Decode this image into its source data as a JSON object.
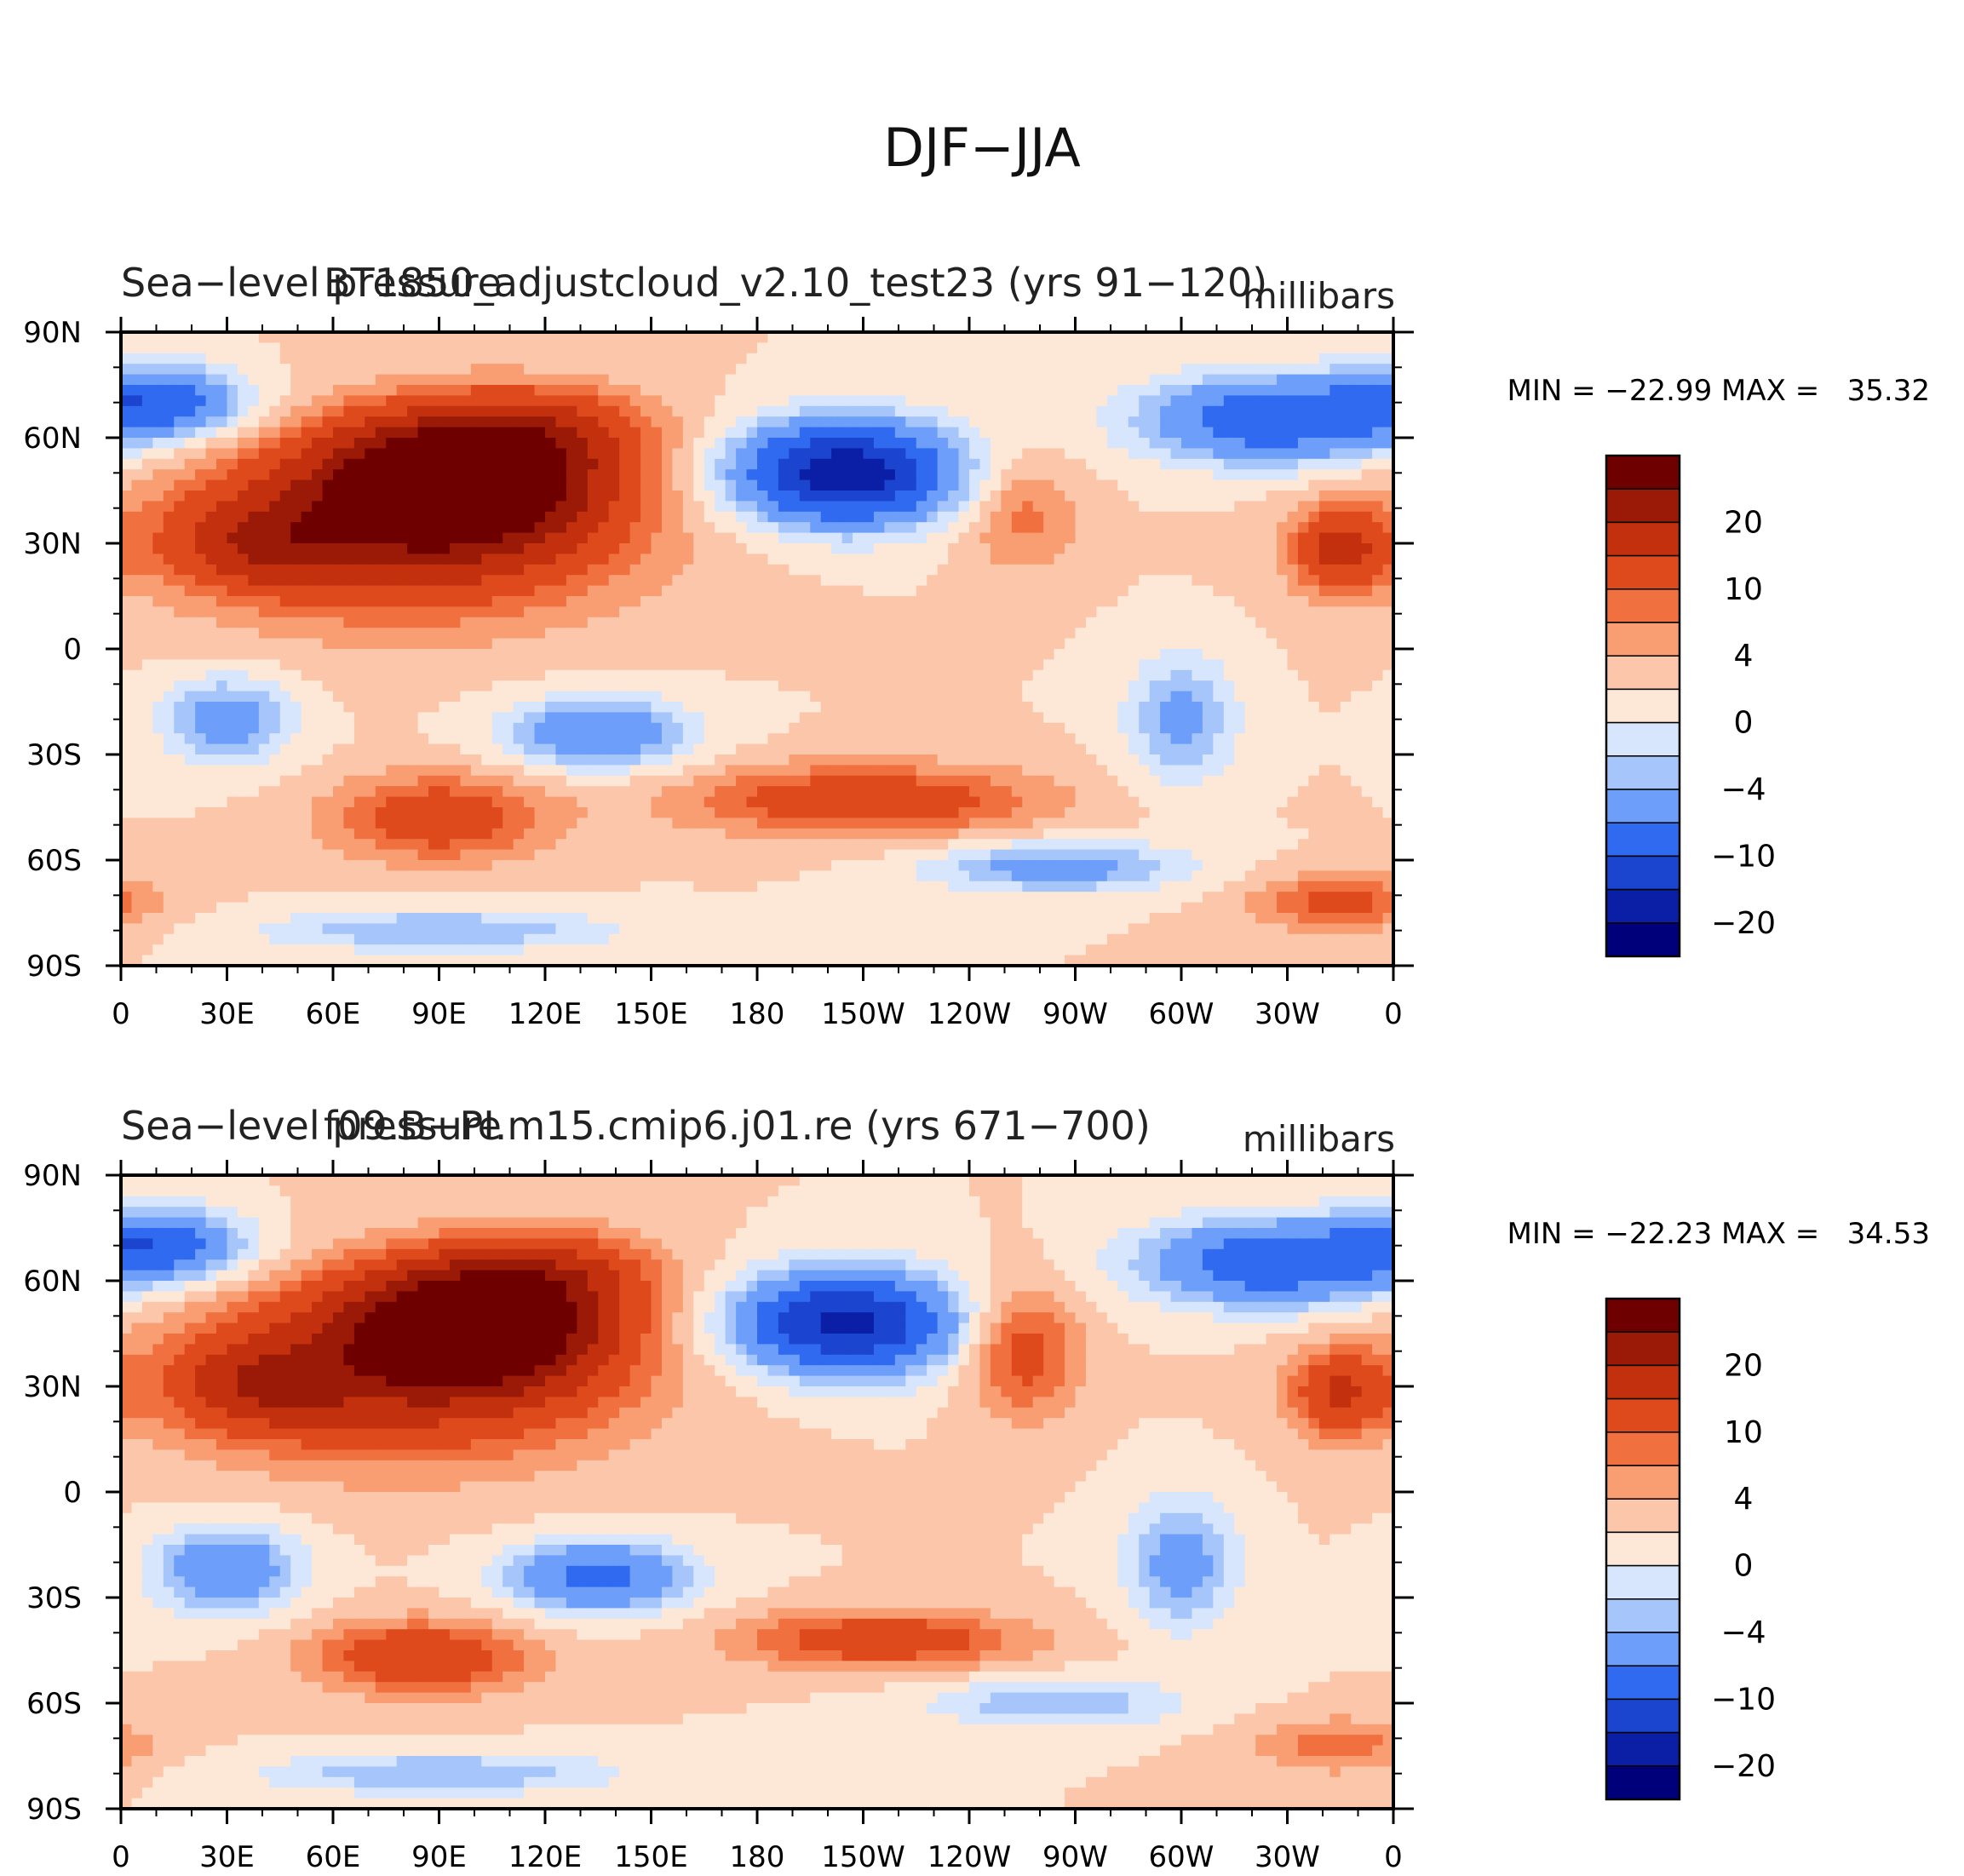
{
  "figure": {
    "title": "DJF−JJA"
  },
  "chart_data": [
    {
      "type": "heatmap",
      "left_title": "Sea−level pressure",
      "center_title": "BT1850_adjustcloud_v2.10_test23 (yrs 91−120)",
      "units": "millibars",
      "stats": {
        "label": "MIN = −22.99 MAX =   35.32",
        "min": -22.99,
        "max": 35.32
      },
      "x_ticks": [
        "0",
        "30E",
        "60E",
        "90E",
        "120E",
        "150E",
        "180",
        "150W",
        "120W",
        "90W",
        "60W",
        "30W",
        "0"
      ],
      "y_ticks": [
        "90N",
        "60N",
        "30N",
        "0",
        "30S",
        "60S",
        "90S"
      ],
      "xlim": [
        0,
        360
      ],
      "ylim": [
        -90,
        90
      ],
      "colorbar_labels": [
        "20",
        "10",
        "4",
        "0",
        "−4",
        "−10",
        "−20"
      ],
      "levels": [
        -25,
        -20,
        -15,
        -10,
        -6,
        -4,
        -2,
        0,
        2,
        4,
        6,
        10,
        15,
        20,
        25
      ],
      "colors": [
        "#00007a",
        "#0a1fa6",
        "#1b44cf",
        "#2f6af0",
        "#6d9ef9",
        "#a6c6fb",
        "#d7e6fd",
        "#fde8d8",
        "#fcc6aa",
        "#f99e72",
        "#f0703f",
        "#df4a1c",
        "#c2300d",
        "#9a1a07",
        "#6e0000"
      ],
      "anomaly_centers": [
        {
          "lon": 95,
          "lat": 48,
          "value": 28,
          "rlon": 35,
          "rlat": 17
        },
        {
          "lon": 80,
          "lat": 35,
          "value": 14,
          "rlon": 60,
          "rlat": 25
        },
        {
          "lon": 40,
          "lat": 30,
          "value": 9,
          "rlon": 25,
          "rlat": 12
        },
        {
          "lon": 120,
          "lat": 62,
          "value": 8,
          "rlon": 30,
          "rlat": 12
        },
        {
          "lon": 345,
          "lat": 28,
          "value": 11,
          "rlon": 14,
          "rlat": 12
        },
        {
          "lon": 255,
          "lat": 38,
          "value": 5,
          "rlon": 16,
          "rlat": 16
        },
        {
          "lon": 205,
          "lat": 50,
          "value": -24,
          "rlon": 30,
          "rlat": 14
        },
        {
          "lon": 325,
          "lat": 65,
          "value": -14,
          "rlon": 35,
          "rlat": 12
        },
        {
          "lon": 10,
          "lat": 70,
          "value": -13,
          "rlon": 25,
          "rlat": 10
        },
        {
          "lon": 30,
          "lat": -20,
          "value": -8,
          "rlon": 18,
          "rlat": 12
        },
        {
          "lon": 135,
          "lat": -24,
          "value": -10,
          "rlon": 25,
          "rlat": 10
        },
        {
          "lon": 300,
          "lat": -20,
          "value": -7,
          "rlon": 15,
          "rlat": 18
        },
        {
          "lon": 90,
          "lat": -48,
          "value": 9,
          "rlon": 30,
          "rlat": 12
        },
        {
          "lon": 210,
          "lat": -43,
          "value": 9,
          "rlon": 50,
          "rlat": 10
        },
        {
          "lon": 265,
          "lat": -62,
          "value": -8,
          "rlon": 35,
          "rlat": 7
        },
        {
          "lon": 345,
          "lat": -72,
          "value": 7,
          "rlon": 25,
          "rlat": 8
        },
        {
          "lon": 90,
          "lat": -80,
          "value": -6,
          "rlon": 50,
          "rlat": 6
        }
      ]
    },
    {
      "type": "heatmap",
      "left_title": "Sea−level pressure",
      "center_title": "f09.B−PI.m15.cmip6.j01.re (yrs 671−700)",
      "units": "millibars",
      "stats": {
        "label": "MIN = −22.23 MAX =   34.53",
        "min": -22.23,
        "max": 34.53
      },
      "x_ticks": [
        "0",
        "30E",
        "60E",
        "90E",
        "120E",
        "150E",
        "180",
        "150W",
        "120W",
        "90W",
        "60W",
        "30W",
        "0"
      ],
      "y_ticks": [
        "90N",
        "60N",
        "30N",
        "0",
        "30S",
        "60S",
        "90S"
      ],
      "xlim": [
        0,
        360
      ],
      "ylim": [
        -90,
        90
      ],
      "colorbar_labels": [
        "20",
        "10",
        "4",
        "0",
        "−4",
        "−10",
        "−20"
      ],
      "levels": [
        -25,
        -20,
        -15,
        -10,
        -6,
        -4,
        -2,
        0,
        2,
        4,
        6,
        10,
        15,
        20,
        25
      ],
      "colors": [
        "#00007a",
        "#0a1fa6",
        "#1b44cf",
        "#2f6af0",
        "#6d9ef9",
        "#a6c6fb",
        "#d7e6fd",
        "#fde8d8",
        "#fcc6aa",
        "#f99e72",
        "#f0703f",
        "#df4a1c",
        "#c2300d",
        "#9a1a07",
        "#6e0000"
      ],
      "anomaly_centers": [
        {
          "lon": 100,
          "lat": 47,
          "value": 27,
          "rlon": 33,
          "rlat": 16
        },
        {
          "lon": 80,
          "lat": 35,
          "value": 13,
          "rlon": 60,
          "rlat": 25
        },
        {
          "lon": 40,
          "lat": 30,
          "value": 9,
          "rlon": 25,
          "rlat": 12
        },
        {
          "lon": 120,
          "lat": 62,
          "value": 9,
          "rlon": 30,
          "rlat": 12
        },
        {
          "lon": 345,
          "lat": 28,
          "value": 10,
          "rlon": 14,
          "rlat": 12
        },
        {
          "lon": 255,
          "lat": 40,
          "value": 8,
          "rlon": 16,
          "rlat": 18
        },
        {
          "lon": 205,
          "lat": 48,
          "value": -22,
          "rlon": 30,
          "rlat": 14
        },
        {
          "lon": 325,
          "lat": 65,
          "value": -14,
          "rlon": 35,
          "rlat": 12
        },
        {
          "lon": 10,
          "lat": 70,
          "value": -13,
          "rlon": 25,
          "rlat": 10
        },
        {
          "lon": 30,
          "lat": -22,
          "value": -10,
          "rlon": 20,
          "rlat": 12
        },
        {
          "lon": 135,
          "lat": -24,
          "value": -12,
          "rlon": 25,
          "rlat": 10
        },
        {
          "lon": 300,
          "lat": -20,
          "value": -8,
          "rlon": 15,
          "rlat": 18
        },
        {
          "lon": 85,
          "lat": -47,
          "value": 10,
          "rlon": 30,
          "rlat": 10
        },
        {
          "lon": 215,
          "lat": -42,
          "value": 9,
          "rlon": 40,
          "rlat": 8
        },
        {
          "lon": 265,
          "lat": -60,
          "value": -6,
          "rlon": 35,
          "rlat": 7
        },
        {
          "lon": 345,
          "lat": -72,
          "value": 5,
          "rlon": 25,
          "rlat": 8
        },
        {
          "lon": 90,
          "lat": -80,
          "value": -6,
          "rlon": 50,
          "rlat": 6
        }
      ]
    }
  ]
}
